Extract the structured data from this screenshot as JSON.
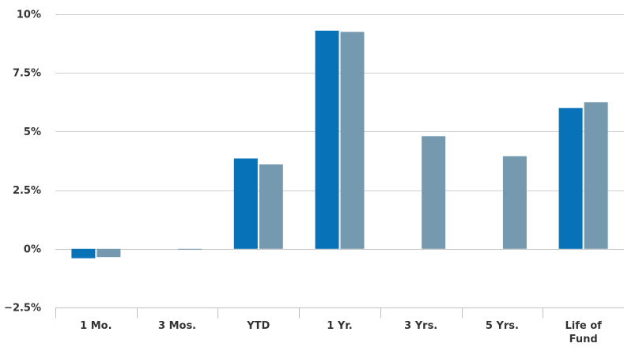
{
  "chart_data": {
    "type": "bar",
    "title": "",
    "xlabel": "",
    "ylabel": "",
    "categories": [
      "1 Mo.",
      "3 Mos.",
      "YTD",
      "1 Yr.",
      "3 Yrs.",
      "5 Yrs.",
      "Life of Fund"
    ],
    "series": [
      {
        "color": "#0772b8",
        "values": [
          -0.4,
          null,
          3.85,
          9.3,
          null,
          null,
          6.0
        ]
      },
      {
        "color": "#7599ae",
        "values": [
          -0.35,
          0.0,
          3.6,
          9.25,
          4.8,
          3.95,
          6.25
        ]
      }
    ],
    "ylim": [
      -2.5,
      10
    ],
    "yticks": [
      -2.5,
      0,
      2.5,
      5,
      7.5,
      10
    ],
    "ytick_labels": [
      "−2.5%",
      "0%",
      "2.5%",
      "5%",
      "7.5%",
      "10%"
    ],
    "grid": true,
    "legend": "none"
  }
}
